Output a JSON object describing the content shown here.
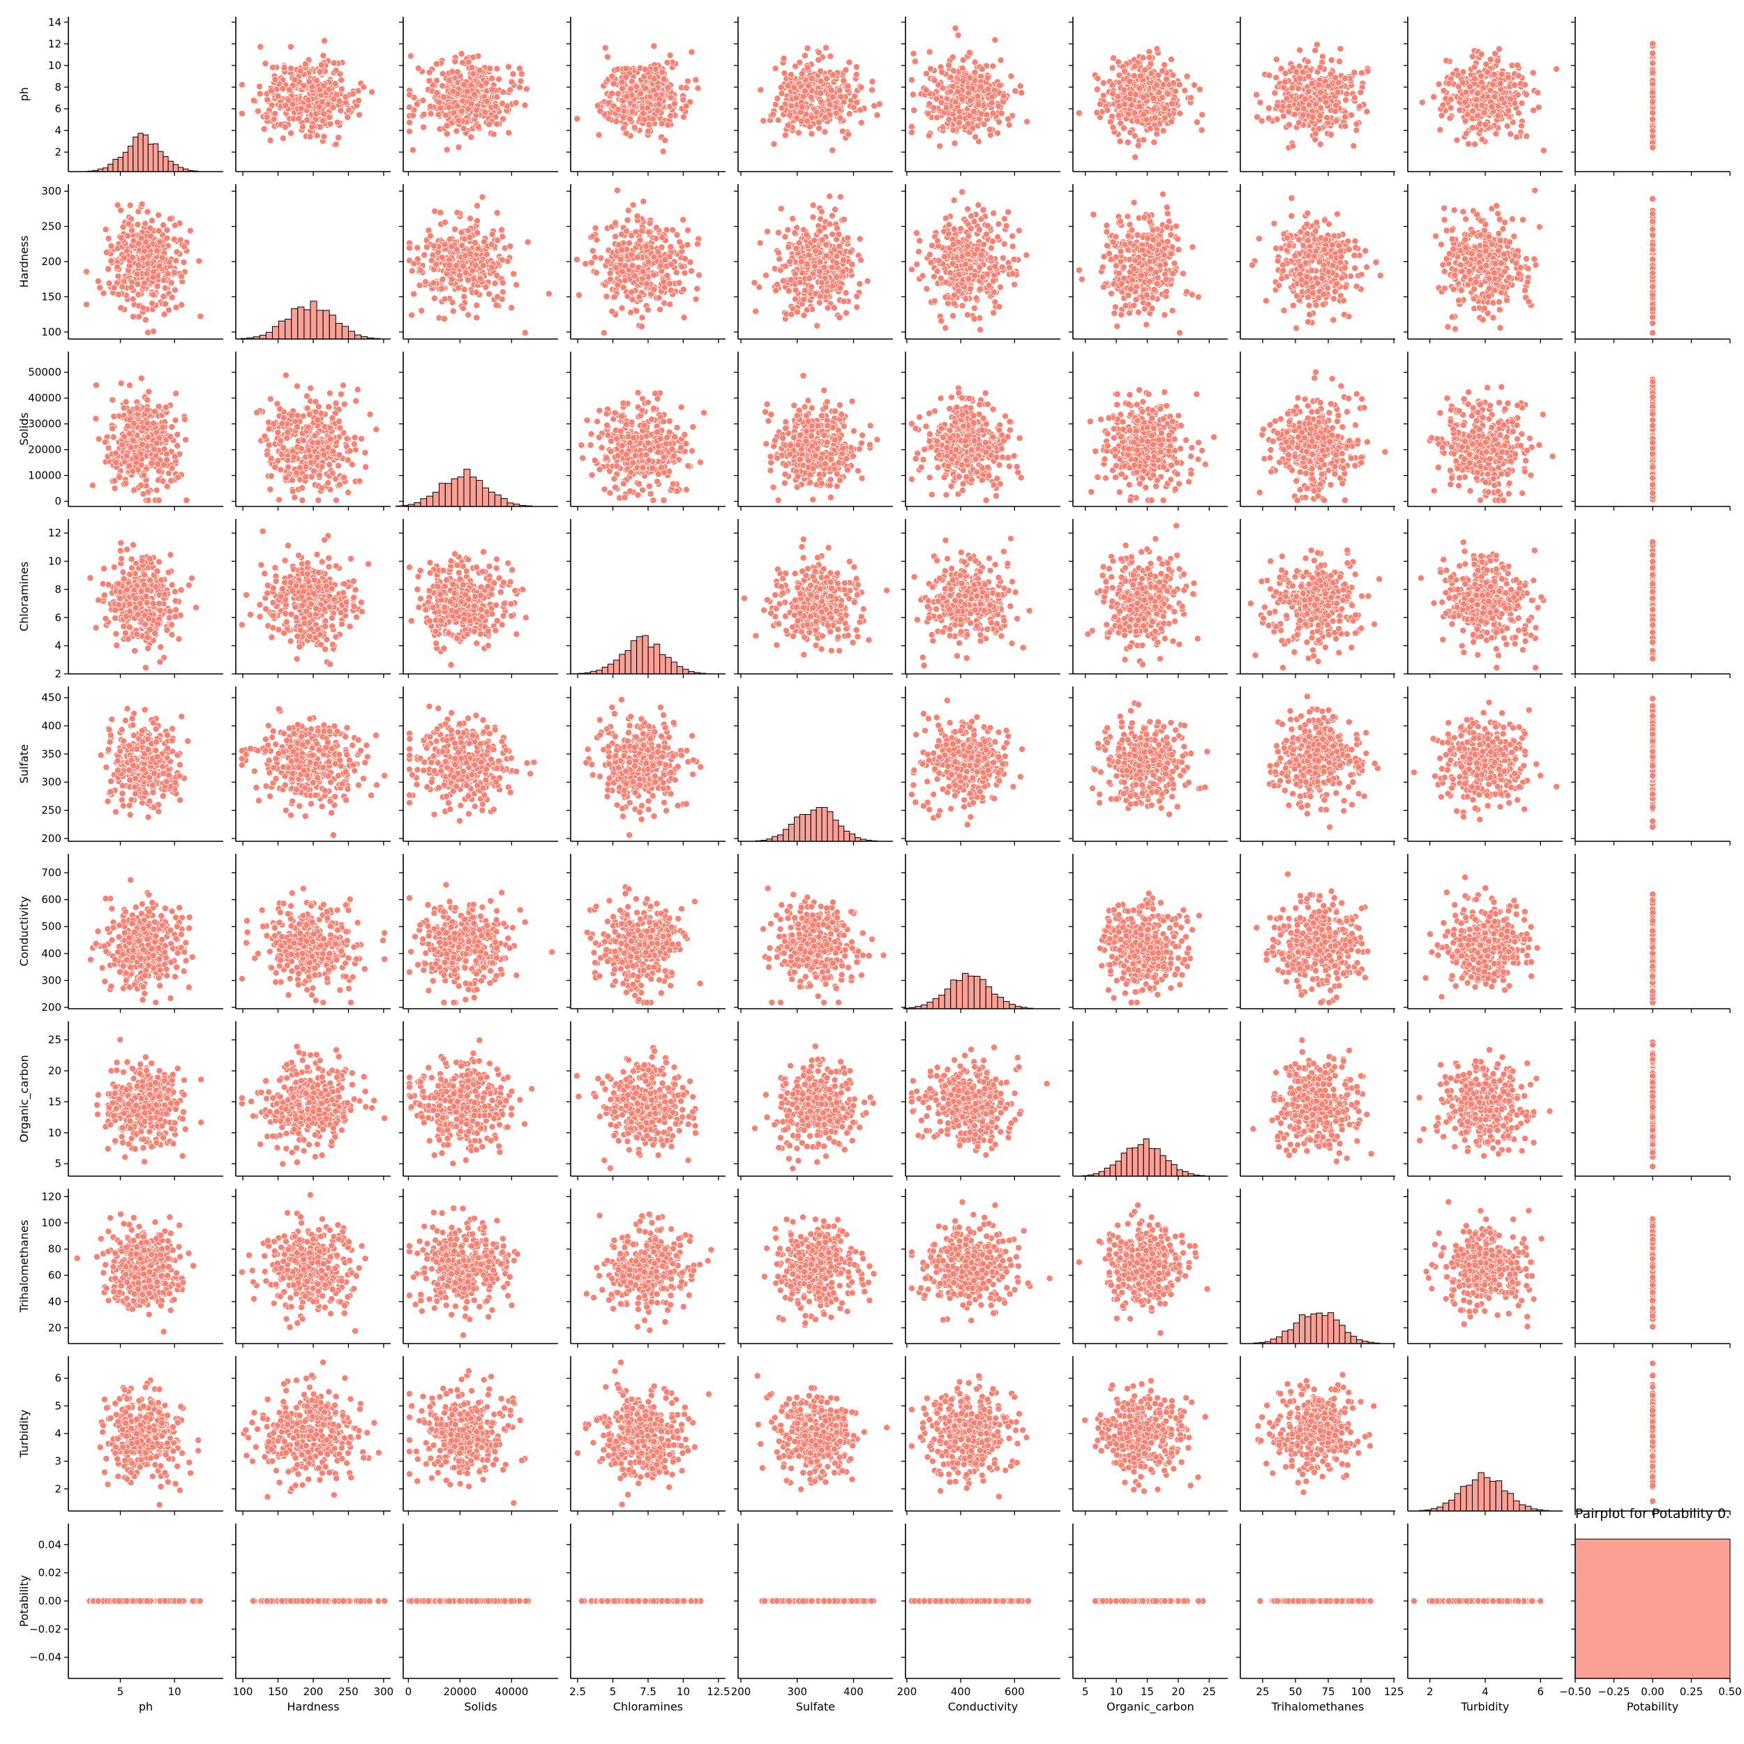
{
  "chart_data": {
    "type": "scatter",
    "kind": "pairplot",
    "title": "Pairplot for Potability 0.",
    "color": "#fa8072",
    "diagonal": "histogram",
    "legend": "none",
    "grid": false,
    "variables": [
      {
        "name": "ph",
        "range": [
          0.2,
          14.5
        ],
        "ticks": [
          2,
          4,
          6,
          8,
          10,
          12,
          14
        ],
        "xticks": [
          5,
          10
        ],
        "mean": 7.1,
        "sd": 1.7,
        "hist_peak": 0.22
      },
      {
        "name": "Hardness",
        "range": [
          90,
          310
        ],
        "ticks": [
          100,
          150,
          200,
          250,
          300
        ],
        "xticks": [
          100,
          150,
          200,
          250,
          300
        ],
        "mean": 196,
        "sd": 33,
        "hist_peak": 0.22
      },
      {
        "name": "Solids",
        "range": [
          -2000,
          58000
        ],
        "ticks": [
          0,
          10000,
          20000,
          30000,
          40000,
          50000
        ],
        "xticks": [
          0,
          20000,
          40000
        ],
        "mean": 21500,
        "sd": 8800,
        "hist_peak": 0.22
      },
      {
        "name": "Chloramines",
        "range": [
          2,
          13
        ],
        "ticks": [
          2,
          4,
          6,
          8,
          10,
          12
        ],
        "xticks": [
          2.5,
          5.0,
          7.5,
          10.0,
          12.5
        ],
        "mean": 7.1,
        "sd": 1.5,
        "hist_peak": 0.22
      },
      {
        "name": "Sulfate",
        "range": [
          195,
          470
        ],
        "ticks": [
          200,
          250,
          300,
          350,
          400,
          450
        ],
        "xticks": [
          200,
          300,
          400
        ],
        "mean": 334,
        "sd": 36,
        "hist_peak": 0.22
      },
      {
        "name": "Conductivity",
        "range": [
          195,
          770
        ],
        "ticks": [
          200,
          300,
          400,
          500,
          600,
          700
        ],
        "xticks": [
          200,
          400,
          600
        ],
        "mean": 428,
        "sd": 80,
        "hist_peak": 0.22
      },
      {
        "name": "Organic_carbon",
        "range": [
          3,
          28
        ],
        "ticks": [
          5,
          10,
          15,
          20,
          25
        ],
        "xticks": [
          5,
          10,
          15,
          20,
          25
        ],
        "mean": 14.4,
        "sd": 3.3,
        "hist_peak": 0.22
      },
      {
        "name": "Trihalomethanes",
        "range": [
          8,
          126
        ],
        "ticks": [
          20,
          40,
          60,
          80,
          100,
          120
        ],
        "xticks": [
          25,
          50,
          75,
          100,
          125
        ],
        "mean": 66,
        "sd": 16,
        "hist_peak": 0.22
      },
      {
        "name": "Turbidity",
        "range": [
          1.2,
          6.8
        ],
        "ticks": [
          2,
          3,
          4,
          5,
          6
        ],
        "xticks": [
          2,
          4,
          6
        ],
        "mean": 3.96,
        "sd": 0.78,
        "hist_peak": 0.22
      },
      {
        "name": "Potability",
        "range": [
          -0.055,
          0.055
        ],
        "ticks": [
          -0.04,
          -0.02,
          0.0,
          0.02,
          0.04
        ],
        "ticklabels": [
          "−0.04",
          "−0.02",
          "0.00",
          "0.02",
          "0.04"
        ],
        "xrange": [
          -0.5,
          0.5
        ],
        "xticks": [
          -0.5,
          -0.25,
          0.0,
          0.25,
          0.5
        ],
        "xticklabels": [
          "−0.50",
          "−0.25",
          "0.00",
          "0.25",
          "0.50"
        ],
        "constant": 0,
        "hist_peak": 0.9
      }
    ],
    "samples_per_panel": 360,
    "seed": 20240518
  }
}
